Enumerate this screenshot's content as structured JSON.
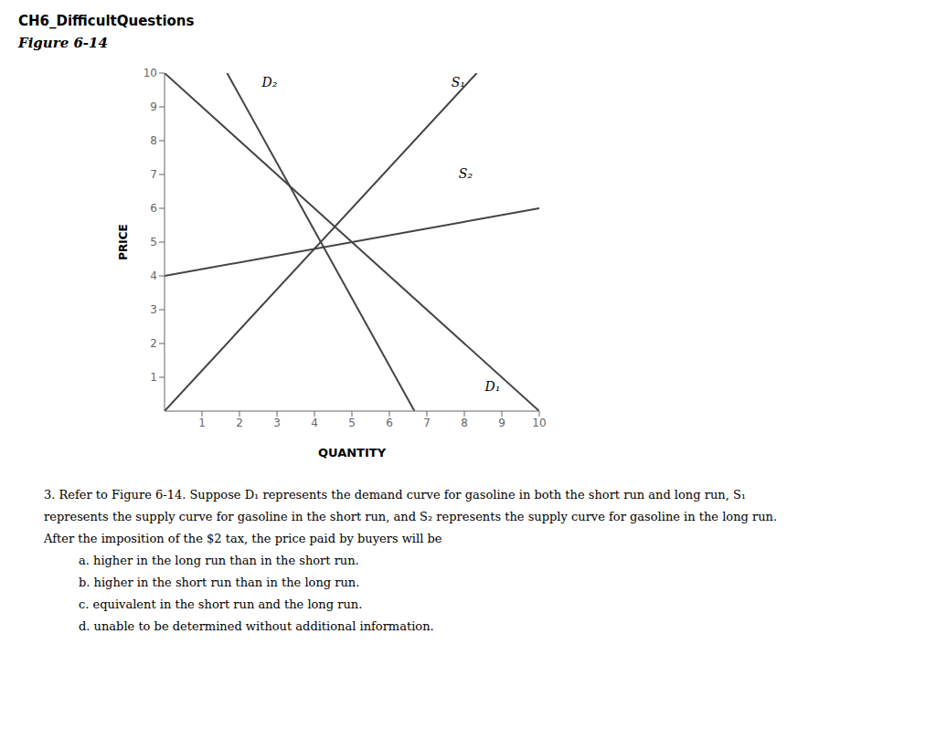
{
  "chart_data": {
    "type": "line",
    "title": "CH6_DifficultQuestions",
    "subtitle": "Figure 6-14",
    "xlabel": "QUANTITY",
    "ylabel": "PRICE",
    "xlim": [
      0,
      10
    ],
    "ylim": [
      0,
      10
    ],
    "xticks": [
      1,
      2,
      3,
      4,
      5,
      6,
      7,
      8,
      9,
      10
    ],
    "yticks": [
      1,
      2,
      3,
      4,
      5,
      6,
      7,
      8,
      9,
      10
    ],
    "series": [
      {
        "color": "#444444",
        "x": [
          0,
          10
        ],
        "values": [
          10,
          0
        ]
      },
      {
        "color": "#444444",
        "x": [
          1.67,
          6.67
        ],
        "values": [
          10,
          0
        ]
      },
      {
        "color": "#444444",
        "x": [
          0,
          8.33
        ],
        "values": [
          0,
          10
        ]
      },
      {
        "color": "#444444",
        "x": [
          0,
          10
        ],
        "values": [
          4,
          6
        ]
      }
    ],
    "annotations": [
      {
        "text": "D₁",
        "x": 8.55,
        "y": 0.55
      },
      {
        "text": "D₂",
        "x": 2.6,
        "y": 9.55
      },
      {
        "text": "S₁",
        "x": 7.65,
        "y": 9.55
      },
      {
        "text": "S₂",
        "x": 7.85,
        "y": 6.85
      }
    ],
    "question": [
      "3. Refer to Figure 6-14. Suppose D₁ represents the demand curve for gasoline in both the short run and long run, S₁",
      "represents the supply curve for gasoline in the short run, and S₂ represents the supply curve for gasoline in the long run.",
      "After the imposition of the $2 tax, the price paid by buyers will be"
    ],
    "choices": [
      "a. higher in the long run than in the short run.",
      "b. higher in the short run than in the long run.",
      "c. equivalent in the short run and the long run.",
      "d. unable to be determined without additional information."
    ]
  }
}
